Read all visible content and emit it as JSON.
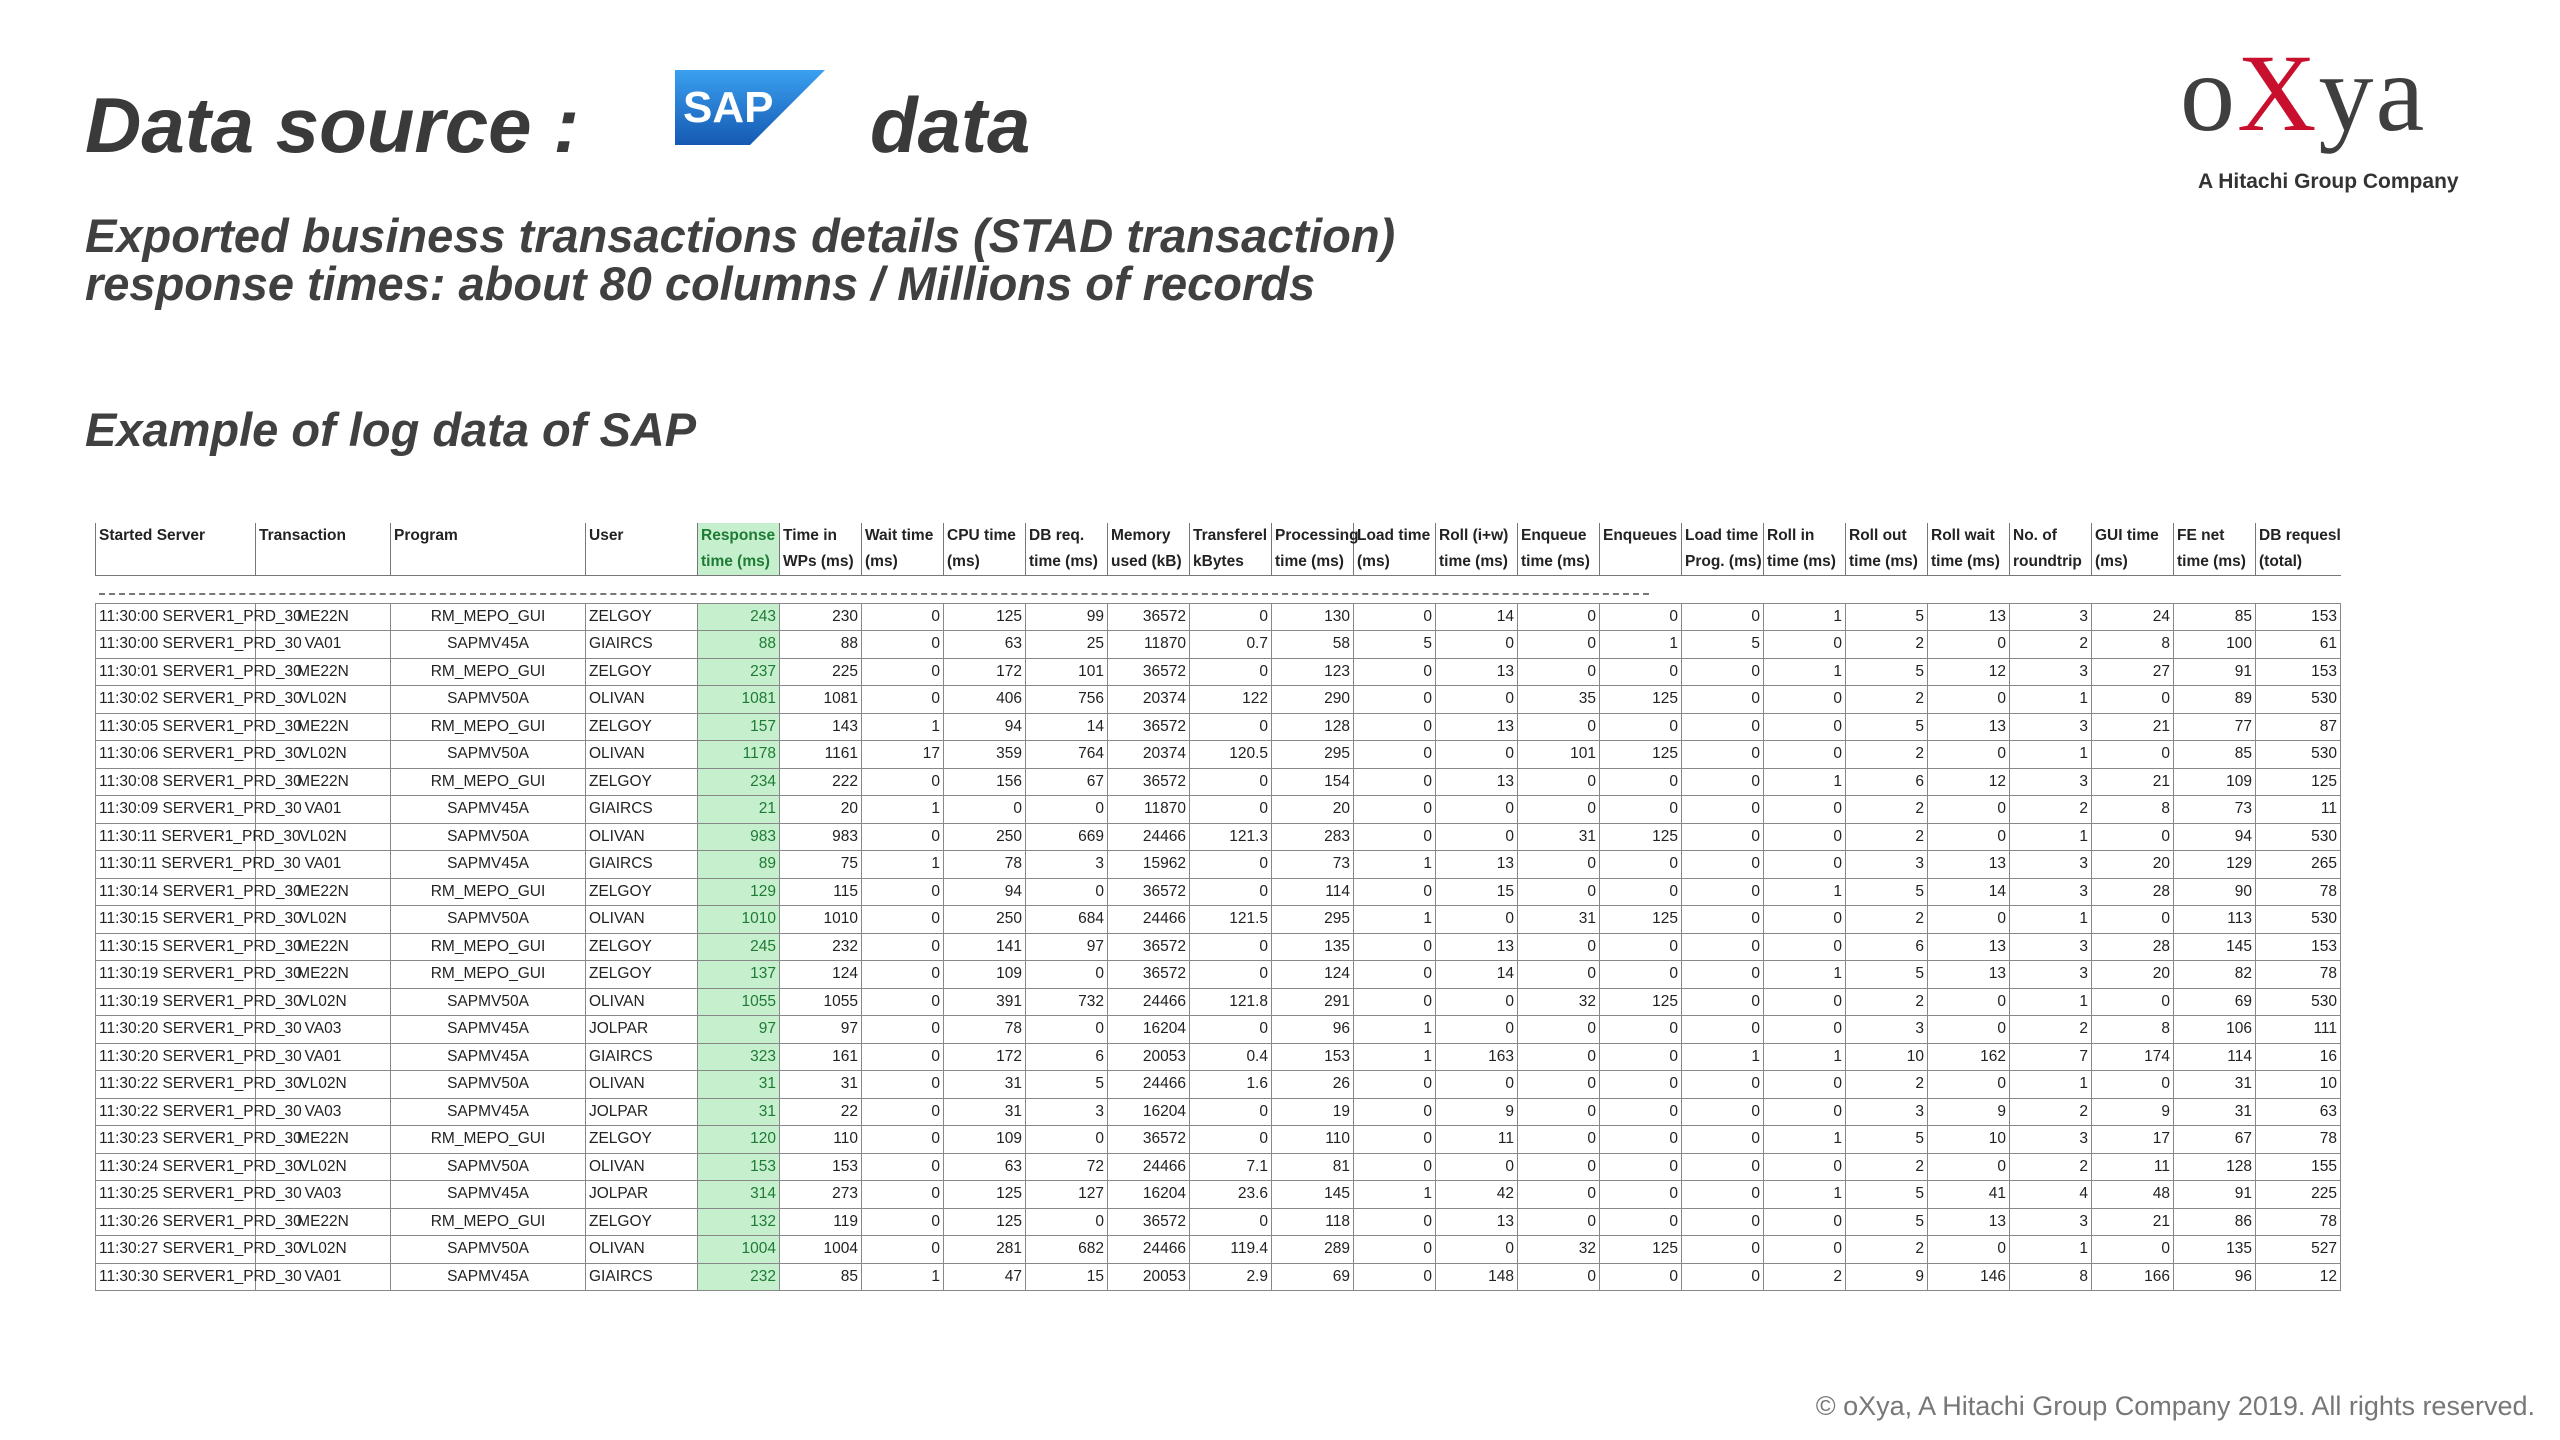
{
  "title": {
    "prefix": "Data source :",
    "logo_text": "SAP",
    "suffix": "data"
  },
  "subtitle": {
    "line1": "Exported business transactions details  (STAD transaction)",
    "line2": "response times:  about 80 columns / Millions of records"
  },
  "example_label": "Example of log data of SAP",
  "brand": {
    "name_pre": "o",
    "name_x": "X",
    "name_post": "ya",
    "tagline": "A Hitachi Group Company"
  },
  "footer": "© oXya, A Hitachi Group Company 2019. All rights reserved.",
  "colors": {
    "response_bg": "#c6efce",
    "response_text": "#1e7b34",
    "sap_blue": "#1f6fc5",
    "oxya_red": "#c8102e"
  },
  "table": {
    "headers_row1": [
      "Started Server",
      "Transaction",
      "Program",
      "User",
      "Response",
      "Time in",
      "Wait time",
      "CPU time",
      "DB req.",
      "Memory",
      "Transferel",
      "Processing",
      "Load time",
      "Roll (i+w)",
      "Enqueue",
      "Enqueues",
      "Load time",
      "Roll in",
      "Roll out",
      "Roll wait",
      "No. of",
      "GUI time",
      "FE net",
      "DB requesl"
    ],
    "headers_row2": [
      "",
      "",
      "",
      "",
      "time (ms)",
      "WPs (ms)",
      "(ms)",
      "(ms)",
      "time (ms)",
      "used (kB)",
      "kBytes",
      "time (ms)",
      "(ms)",
      "time (ms)",
      "time (ms)",
      "",
      "Prog. (ms)",
      "time (ms)",
      "time (ms)",
      "time (ms)",
      "roundtrip",
      "(ms)",
      "time (ms)",
      "(total)"
    ],
    "rows": [
      [
        "11:30:00 SERVER1_PRD_30",
        "ME22N",
        "RM_MEPO_GUI",
        "ZELGOY",
        "243",
        "230",
        "0",
        "125",
        "99",
        "36572",
        "0",
        "130",
        "0",
        "14",
        "0",
        "0",
        "0",
        "1",
        "5",
        "13",
        "3",
        "24",
        "85",
        "153"
      ],
      [
        "11:30:00 SERVER1_PRD_30",
        "VA01",
        "SAPMV45A",
        "GIAIRCS",
        "88",
        "88",
        "0",
        "63",
        "25",
        "11870",
        "0.7",
        "58",
        "5",
        "0",
        "0",
        "1",
        "5",
        "0",
        "2",
        "0",
        "2",
        "8",
        "100",
        "61"
      ],
      [
        "11:30:01 SERVER1_PRD_30",
        "ME22N",
        "RM_MEPO_GUI",
        "ZELGOY",
        "237",
        "225",
        "0",
        "172",
        "101",
        "36572",
        "0",
        "123",
        "0",
        "13",
        "0",
        "0",
        "0",
        "1",
        "5",
        "12",
        "3",
        "27",
        "91",
        "153"
      ],
      [
        "11:30:02 SERVER1_PRD_30",
        "VL02N",
        "SAPMV50A",
        "OLIVAN",
        "1081",
        "1081",
        "0",
        "406",
        "756",
        "20374",
        "122",
        "290",
        "0",
        "0",
        "35",
        "125",
        "0",
        "0",
        "2",
        "0",
        "1",
        "0",
        "89",
        "530"
      ],
      [
        "11:30:05 SERVER1_PRD_30",
        "ME22N",
        "RM_MEPO_GUI",
        "ZELGOY",
        "157",
        "143",
        "1",
        "94",
        "14",
        "36572",
        "0",
        "128",
        "0",
        "13",
        "0",
        "0",
        "0",
        "0",
        "5",
        "13",
        "3",
        "21",
        "77",
        "87"
      ],
      [
        "11:30:06 SERVER1_PRD_30",
        "VL02N",
        "SAPMV50A",
        "OLIVAN",
        "1178",
        "1161",
        "17",
        "359",
        "764",
        "20374",
        "120.5",
        "295",
        "0",
        "0",
        "101",
        "125",
        "0",
        "0",
        "2",
        "0",
        "1",
        "0",
        "85",
        "530"
      ],
      [
        "11:30:08 SERVER1_PRD_30",
        "ME22N",
        "RM_MEPO_GUI",
        "ZELGOY",
        "234",
        "222",
        "0",
        "156",
        "67",
        "36572",
        "0",
        "154",
        "0",
        "13",
        "0",
        "0",
        "0",
        "1",
        "6",
        "12",
        "3",
        "21",
        "109",
        "125"
      ],
      [
        "11:30:09 SERVER1_PRD_30",
        "VA01",
        "SAPMV45A",
        "GIAIRCS",
        "21",
        "20",
        "1",
        "0",
        "0",
        "11870",
        "0",
        "20",
        "0",
        "0",
        "0",
        "0",
        "0",
        "0",
        "2",
        "0",
        "2",
        "8",
        "73",
        "11"
      ],
      [
        "11:30:11 SERVER1_PRD_30",
        "VL02N",
        "SAPMV50A",
        "OLIVAN",
        "983",
        "983",
        "0",
        "250",
        "669",
        "24466",
        "121.3",
        "283",
        "0",
        "0",
        "31",
        "125",
        "0",
        "0",
        "2",
        "0",
        "1",
        "0",
        "94",
        "530"
      ],
      [
        "11:30:11 SERVER1_PRD_30",
        "VA01",
        "SAPMV45A",
        "GIAIRCS",
        "89",
        "75",
        "1",
        "78",
        "3",
        "15962",
        "0",
        "73",
        "1",
        "13",
        "0",
        "0",
        "0",
        "0",
        "3",
        "13",
        "3",
        "20",
        "129",
        "265"
      ],
      [
        "11:30:14 SERVER1_PRD_30",
        "ME22N",
        "RM_MEPO_GUI",
        "ZELGOY",
        "129",
        "115",
        "0",
        "94",
        "0",
        "36572",
        "0",
        "114",
        "0",
        "15",
        "0",
        "0",
        "0",
        "1",
        "5",
        "14",
        "3",
        "28",
        "90",
        "78"
      ],
      [
        "11:30:15 SERVER1_PRD_30",
        "VL02N",
        "SAPMV50A",
        "OLIVAN",
        "1010",
        "1010",
        "0",
        "250",
        "684",
        "24466",
        "121.5",
        "295",
        "1",
        "0",
        "31",
        "125",
        "0",
        "0",
        "2",
        "0",
        "1",
        "0",
        "113",
        "530"
      ],
      [
        "11:30:15 SERVER1_PRD_30",
        "ME22N",
        "RM_MEPO_GUI",
        "ZELGOY",
        "245",
        "232",
        "0",
        "141",
        "97",
        "36572",
        "0",
        "135",
        "0",
        "13",
        "0",
        "0",
        "0",
        "0",
        "6",
        "13",
        "3",
        "28",
        "145",
        "153"
      ],
      [
        "11:30:19 SERVER1_PRD_30",
        "ME22N",
        "RM_MEPO_GUI",
        "ZELGOY",
        "137",
        "124",
        "0",
        "109",
        "0",
        "36572",
        "0",
        "124",
        "0",
        "14",
        "0",
        "0",
        "0",
        "1",
        "5",
        "13",
        "3",
        "20",
        "82",
        "78"
      ],
      [
        "11:30:19 SERVER1_PRD_30",
        "VL02N",
        "SAPMV50A",
        "OLIVAN",
        "1055",
        "1055",
        "0",
        "391",
        "732",
        "24466",
        "121.8",
        "291",
        "0",
        "0",
        "32",
        "125",
        "0",
        "0",
        "2",
        "0",
        "1",
        "0",
        "69",
        "530"
      ],
      [
        "11:30:20 SERVER1_PRD_30",
        "VA03",
        "SAPMV45A",
        "JOLPAR",
        "97",
        "97",
        "0",
        "78",
        "0",
        "16204",
        "0",
        "96",
        "1",
        "0",
        "0",
        "0",
        "0",
        "0",
        "3",
        "0",
        "2",
        "8",
        "106",
        "111"
      ],
      [
        "11:30:20 SERVER1_PRD_30",
        "VA01",
        "SAPMV45A",
        "GIAIRCS",
        "323",
        "161",
        "0",
        "172",
        "6",
        "20053",
        "0.4",
        "153",
        "1",
        "163",
        "0",
        "0",
        "1",
        "1",
        "10",
        "162",
        "7",
        "174",
        "114",
        "16"
      ],
      [
        "11:30:22 SERVER1_PRD_30",
        "VL02N",
        "SAPMV50A",
        "OLIVAN",
        "31",
        "31",
        "0",
        "31",
        "5",
        "24466",
        "1.6",
        "26",
        "0",
        "0",
        "0",
        "0",
        "0",
        "0",
        "2",
        "0",
        "1",
        "0",
        "31",
        "10"
      ],
      [
        "11:30:22 SERVER1_PRD_30",
        "VA03",
        "SAPMV45A",
        "JOLPAR",
        "31",
        "22",
        "0",
        "31",
        "3",
        "16204",
        "0",
        "19",
        "0",
        "9",
        "0",
        "0",
        "0",
        "0",
        "3",
        "9",
        "2",
        "9",
        "31",
        "63"
      ],
      [
        "11:30:23 SERVER1_PRD_30",
        "ME22N",
        "RM_MEPO_GUI",
        "ZELGOY",
        "120",
        "110",
        "0",
        "109",
        "0",
        "36572",
        "0",
        "110",
        "0",
        "11",
        "0",
        "0",
        "0",
        "1",
        "5",
        "10",
        "3",
        "17",
        "67",
        "78"
      ],
      [
        "11:30:24 SERVER1_PRD_30",
        "VL02N",
        "SAPMV50A",
        "OLIVAN",
        "153",
        "153",
        "0",
        "63",
        "72",
        "24466",
        "7.1",
        "81",
        "0",
        "0",
        "0",
        "0",
        "0",
        "0",
        "2",
        "0",
        "2",
        "11",
        "128",
        "155"
      ],
      [
        "11:30:25 SERVER1_PRD_30",
        "VA03",
        "SAPMV45A",
        "JOLPAR",
        "314",
        "273",
        "0",
        "125",
        "127",
        "16204",
        "23.6",
        "145",
        "1",
        "42",
        "0",
        "0",
        "0",
        "1",
        "5",
        "41",
        "4",
        "48",
        "91",
        "225"
      ],
      [
        "11:30:26 SERVER1_PRD_30",
        "ME22N",
        "RM_MEPO_GUI",
        "ZELGOY",
        "132",
        "119",
        "0",
        "125",
        "0",
        "36572",
        "0",
        "118",
        "0",
        "13",
        "0",
        "0",
        "0",
        "0",
        "5",
        "13",
        "3",
        "21",
        "86",
        "78"
      ],
      [
        "11:30:27 SERVER1_PRD_30",
        "VL02N",
        "SAPMV50A",
        "OLIVAN",
        "1004",
        "1004",
        "0",
        "281",
        "682",
        "24466",
        "119.4",
        "289",
        "0",
        "0",
        "32",
        "125",
        "0",
        "0",
        "2",
        "0",
        "1",
        "0",
        "135",
        "527"
      ],
      [
        "11:30:30 SERVER1_PRD_30",
        "VA01",
        "SAPMV45A",
        "GIAIRCS",
        "232",
        "85",
        "1",
        "47",
        "15",
        "20053",
        "2.9",
        "69",
        "0",
        "148",
        "0",
        "0",
        "0",
        "2",
        "9",
        "146",
        "8",
        "166",
        "96",
        "12"
      ]
    ]
  }
}
